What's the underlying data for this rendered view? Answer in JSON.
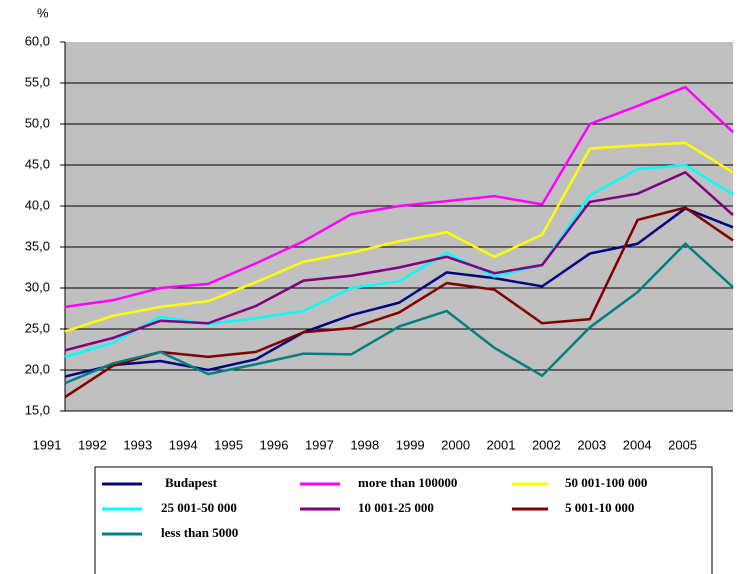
{
  "chart_data": {
    "type": "line",
    "y_unit": "%",
    "categories": [
      "1991",
      "1992",
      "1993",
      "1994",
      "1995",
      "1996",
      "1997",
      "1998",
      "1999",
      "2000",
      "2001",
      "2002",
      "2003",
      "2004",
      "2005"
    ],
    "ylim": [
      15,
      60
    ],
    "yticks": [
      {
        "value": 15,
        "label": "15,0"
      },
      {
        "value": 20,
        "label": "20,0"
      },
      {
        "value": 25,
        "label": "25,0"
      },
      {
        "value": 30,
        "label": "30,0"
      },
      {
        "value": 35,
        "label": "35,0"
      },
      {
        "value": 40,
        "label": "40,0"
      },
      {
        "value": 45,
        "label": "45,0"
      },
      {
        "value": 50,
        "label": "50,0"
      },
      {
        "value": 55,
        "label": "55,0"
      },
      {
        "value": 60,
        "label": "60,0"
      }
    ],
    "grid": true,
    "legend": "bottom",
    "series": [
      {
        "name": "Budapest",
        "color": "#000080",
        "values": [
          19.2,
          20.6,
          21.1,
          20.0,
          21.3,
          24.6,
          26.7,
          28.2,
          31.9,
          31.2,
          30.2,
          34.2,
          35.4,
          39.7,
          37.4
        ]
      },
      {
        "name": "more than 100000",
        "color": "#ff00ff",
        "values": [
          27.7,
          28.5,
          30.0,
          30.5,
          33.0,
          35.7,
          39.0,
          40.0,
          40.6,
          41.2,
          40.2,
          50.0,
          52.2,
          54.5,
          49.0
        ]
      },
      {
        "name": "50 001-100 000",
        "color": "#ffff00",
        "values": [
          24.7,
          26.6,
          27.7,
          28.4,
          30.7,
          33.2,
          34.3,
          35.7,
          36.8,
          33.8,
          36.5,
          47.0,
          47.4,
          47.7,
          44.1
        ]
      },
      {
        "name": "25 001-50 000",
        "color": "#00ffff",
        "values": [
          21.6,
          23.3,
          26.5,
          25.6,
          26.3,
          27.2,
          30.0,
          30.8,
          34.3,
          31.4,
          32.8,
          41.3,
          44.5,
          45.0,
          41.4
        ]
      },
      {
        "name": "10 001-25 000",
        "color": "#800080",
        "values": [
          22.4,
          23.9,
          26.0,
          25.7,
          27.8,
          30.9,
          31.5,
          32.5,
          33.8,
          31.8,
          32.8,
          40.5,
          41.5,
          44.1,
          38.9
        ]
      },
      {
        "name": "5 001-10 000",
        "color": "#800000",
        "values": [
          16.7,
          20.5,
          22.2,
          21.6,
          22.2,
          24.6,
          25.1,
          27.0,
          30.6,
          29.8,
          25.7,
          26.2,
          38.3,
          39.8,
          35.8
        ]
      },
      {
        "name": "less than 5000",
        "color": "#008080",
        "values": [
          18.4,
          20.8,
          22.2,
          19.5,
          20.7,
          22.0,
          21.9,
          25.3,
          27.2,
          22.7,
          19.3,
          25.2,
          29.5,
          35.4,
          30.1
        ]
      }
    ]
  }
}
